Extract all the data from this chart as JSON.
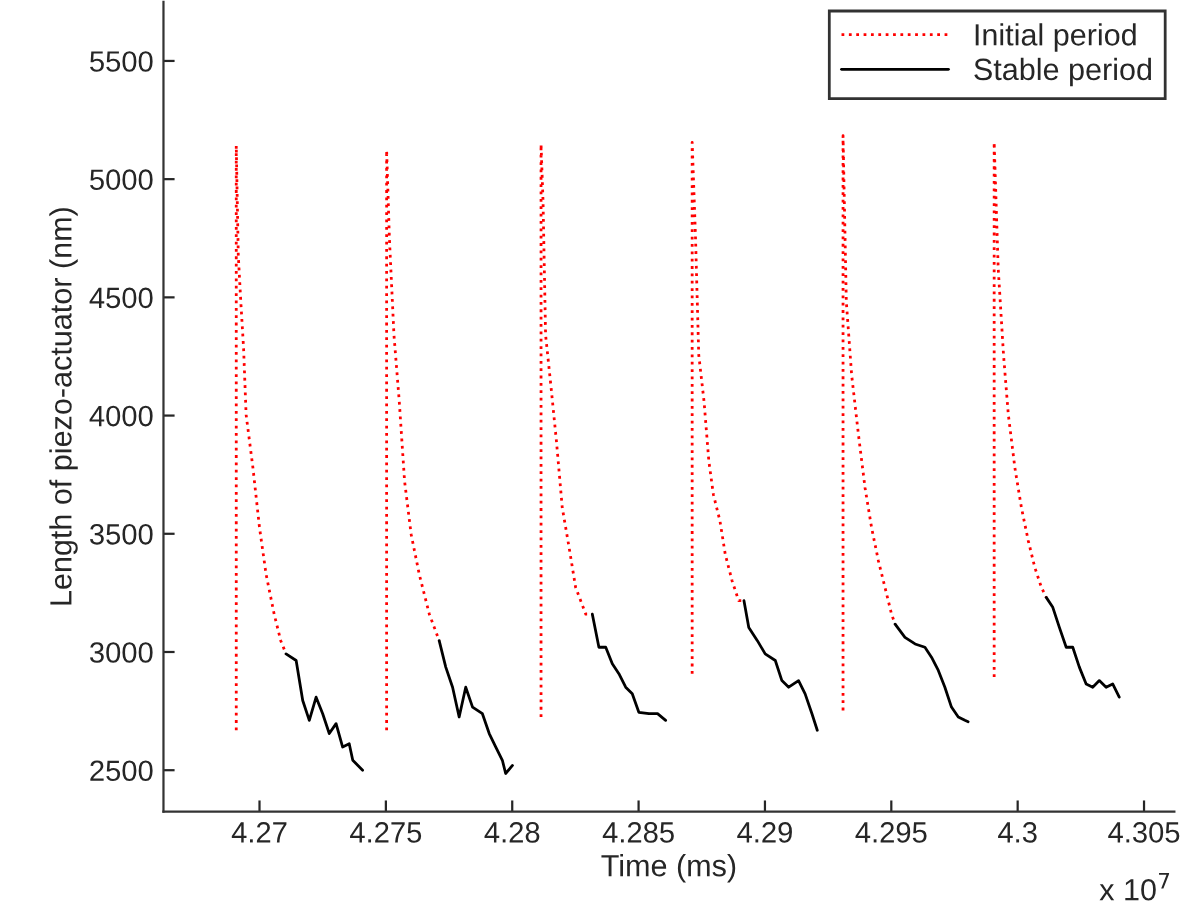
{
  "chart_data": {
    "type": "line",
    "xlabel": "Time (ms)",
    "ylabel": "Length of piezo-actuator (nm)",
    "xlim": [
      4.2662,
      4.3062
    ],
    "ylim": [
      2325,
      5750
    ],
    "xticks": [
      4.27,
      4.275,
      4.28,
      4.285,
      4.29,
      4.295,
      4.3,
      4.305
    ],
    "yticks": [
      2500,
      3000,
      3500,
      4000,
      4500,
      5000,
      5500
    ],
    "annotations": [
      "x 10$^{7}$"
    ],
    "grid": false,
    "legend": "top right",
    "series": [
      {
        "name": "Initial period",
        "color": "#ff0000",
        "line_style": "dotted",
        "x": [
          4.26908,
          4.26908,
          4.26916,
          4.26926,
          4.26937,
          4.26947,
          4.26974,
          4.27,
          4.27026,
          4.27058,
          4.27084,
          4.27105,
          null,
          4.27503,
          4.27503,
          4.27514,
          4.27532,
          4.27553,
          4.27574,
          4.276,
          4.27632,
          4.27672,
          4.27711,
          null,
          4.28114,
          4.28114,
          4.28122,
          4.28132,
          4.28154,
          4.28175,
          4.28198,
          4.28225,
          4.28251,
          4.28291,
          4.28317,
          null,
          4.28712,
          4.28712,
          4.28725,
          4.28738,
          4.28759,
          4.28778,
          4.28796,
          4.28822,
          4.28843,
          4.2887,
          4.28896,
          4.28917,
          null,
          4.29309,
          4.29309,
          4.29322,
          4.29343,
          4.2937,
          4.29396,
          4.29422,
          4.29449,
          4.29475,
          4.29501,
          4.29515,
          null,
          4.29907,
          4.29907,
          4.29923,
          4.29944,
          4.29963,
          4.29989,
          4.30015,
          4.30042,
          4.30068,
          4.30094,
          4.30113
        ],
        "values": [
          2669,
          5142,
          4678,
          4481,
          4285,
          4004,
          3779,
          3526,
          3329,
          3160,
          3048,
          2992,
          null,
          2669,
          5122,
          4749,
          4341,
          4060,
          3723,
          3498,
          3329,
          3160,
          3048,
          null,
          2725,
          5148,
          4903,
          4341,
          4116,
          3891,
          3610,
          3442,
          3273,
          3160,
          3160,
          null,
          2908,
          5156,
          4763,
          4257,
          4060,
          3807,
          3666,
          3554,
          3413,
          3301,
          3217,
          3217,
          null,
          2753,
          5184,
          4481,
          4172,
          3919,
          3695,
          3526,
          3385,
          3273,
          3160,
          3118,
          null,
          2894,
          5156,
          4622,
          4257,
          4004,
          3779,
          3610,
          3470,
          3357,
          3273,
          3231
        ]
      },
      {
        "name": "Stable period",
        "color": "#000000",
        "line_style": "solid",
        "x": [
          4.27105,
          4.27145,
          4.27171,
          4.27197,
          4.27224,
          4.2725,
          4.27276,
          4.27303,
          4.27329,
          4.27355,
          4.27369,
          4.27408,
          null,
          4.27711,
          4.27737,
          4.27764,
          4.2779,
          4.27816,
          4.27843,
          4.27882,
          4.27909,
          4.27935,
          4.27961,
          4.27974,
          4.28001,
          null,
          4.28317,
          4.28343,
          4.2837,
          4.28396,
          4.28422,
          4.28449,
          4.28475,
          4.28501,
          4.28541,
          4.28575,
          4.28607,
          null,
          4.28917,
          4.28936,
          4.2897,
          4.29001,
          4.29041,
          4.29067,
          4.29094,
          4.29133,
          4.29159,
          4.29186,
          4.29207,
          null,
          4.29515,
          4.29554,
          4.29594,
          4.29633,
          4.29659,
          4.29686,
          4.29712,
          4.29738,
          4.29765,
          4.29791,
          4.29804,
          null,
          4.30113,
          4.30139,
          4.30165,
          4.30192,
          4.30218,
          4.30244,
          4.30271,
          4.30297,
          4.30323,
          4.3035,
          4.30376,
          4.30402
        ],
        "values": [
          2992,
          2964,
          2795,
          2711,
          2809,
          2739,
          2655,
          2697,
          2598,
          2612,
          2542,
          2500,
          null,
          3048,
          2936,
          2851,
          2725,
          2851,
          2767,
          2739,
          2655,
          2598,
          2542,
          2486,
          2520,
          null,
          3160,
          3020,
          3020,
          2950,
          2908,
          2851,
          2823,
          2745,
          2739,
          2739,
          2711,
          null,
          3217,
          3104,
          3048,
          2992,
          2964,
          2879,
          2851,
          2879,
          2823,
          2739,
          2669,
          null,
          3118,
          3062,
          3034,
          3020,
          2978,
          2922,
          2851,
          2767,
          2725,
          2711,
          2705,
          null,
          3231,
          3189,
          3104,
          3020,
          3020,
          2936,
          2865,
          2851,
          2879,
          2851,
          2865,
          2809
        ]
      }
    ]
  }
}
